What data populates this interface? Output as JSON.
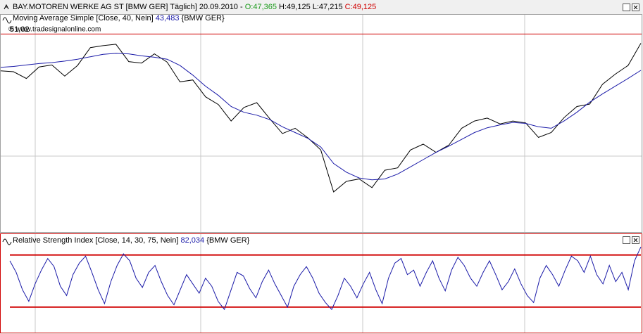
{
  "watermark": "© www.tradesignalonline.com",
  "chart_data": [
    {
      "type": "line",
      "title": "BAY.MOTOREN WERKE AG ST [BMW GER]  Täglich] 20.09.2010 -",
      "ohlc": [
        "O:47,365",
        "H:49,125 L:47,215",
        "C:49,125"
      ],
      "ohlc_colors": [
        "#1a9a1a",
        "#000000",
        "#d00000"
      ],
      "ylim": [
        10,
        55
      ],
      "price_line": {
        "value": 51.02,
        "label": "51,02"
      },
      "price_line_color": "#d00000",
      "series": [
        {
          "color": "#000000",
          "values": [
            43.4,
            43.2,
            41.8,
            44.2,
            44.6,
            42.3,
            44.5,
            48.2,
            48.6,
            48.9,
            45.3,
            45.0,
            46.9,
            45.2,
            41.1,
            41.5,
            38.0,
            36.4,
            33.0,
            35.8,
            36.8,
            33.5,
            30.4,
            31.5,
            29.5,
            27.0,
            18.3,
            20.5,
            21.0,
            19.2,
            22.8,
            23.3,
            27.0,
            28.2,
            26.5,
            28.0,
            31.5,
            33.0,
            33.6,
            32.4,
            33.0,
            32.6,
            29.6,
            30.6,
            33.7,
            36.0,
            36.5,
            40.6,
            42.7,
            44.5,
            49.1
          ]
        },
        {
          "name": "Moving Average Simple [Close, 40, Nein]",
          "last_label": "43,483",
          "suffix": "{BMW GER}",
          "color": "#1a1aa8",
          "values": [
            44.1,
            44.3,
            44.6,
            44.9,
            45.1,
            45.4,
            45.8,
            46.3,
            46.8,
            47.0,
            46.9,
            46.5,
            46.2,
            45.8,
            44.5,
            42.5,
            40.2,
            38.3,
            36.0,
            34.8,
            34.2,
            33.3,
            31.8,
            30.6,
            29.4,
            27.6,
            24.2,
            22.4,
            21.2,
            20.8,
            21.0,
            22.0,
            23.5,
            25.0,
            26.5,
            27.8,
            29.2,
            30.6,
            31.6,
            32.2,
            32.7,
            32.5,
            31.8,
            31.5,
            33.0,
            34.8,
            36.9,
            38.6,
            40.2,
            41.8,
            43.5
          ]
        }
      ]
    },
    {
      "type": "line",
      "ylim": [
        8,
        93
      ],
      "levels": [
        30,
        75
      ],
      "level_color": "#d00000",
      "series": [
        {
          "name": "Relative Strength Index [Close, 14, 30, 75, Nein]",
          "last_label": "82,034",
          "suffix": "{BMW GER}",
          "color": "#1a1aa8",
          "values": [
            70,
            60,
            45,
            35,
            50,
            62,
            72,
            65,
            48,
            40,
            58,
            68,
            74,
            60,
            45,
            33,
            52,
            66,
            76,
            70,
            55,
            47,
            60,
            66,
            52,
            40,
            32,
            45,
            58,
            50,
            42,
            55,
            48,
            35,
            28,
            44,
            60,
            57,
            46,
            38,
            52,
            62,
            50,
            40,
            30,
            48,
            58,
            65,
            55,
            42,
            34,
            28,
            40,
            55,
            48,
            38,
            50,
            60,
            45,
            33,
            55,
            68,
            72,
            58,
            62,
            48,
            60,
            70,
            55,
            44,
            62,
            73,
            66,
            55,
            48,
            60,
            70,
            58,
            45,
            52,
            63,
            50,
            40,
            34,
            55,
            66,
            58,
            48,
            62,
            74,
            70,
            60,
            74,
            58,
            50,
            66,
            52,
            60,
            45,
            70,
            82
          ]
        }
      ]
    }
  ]
}
